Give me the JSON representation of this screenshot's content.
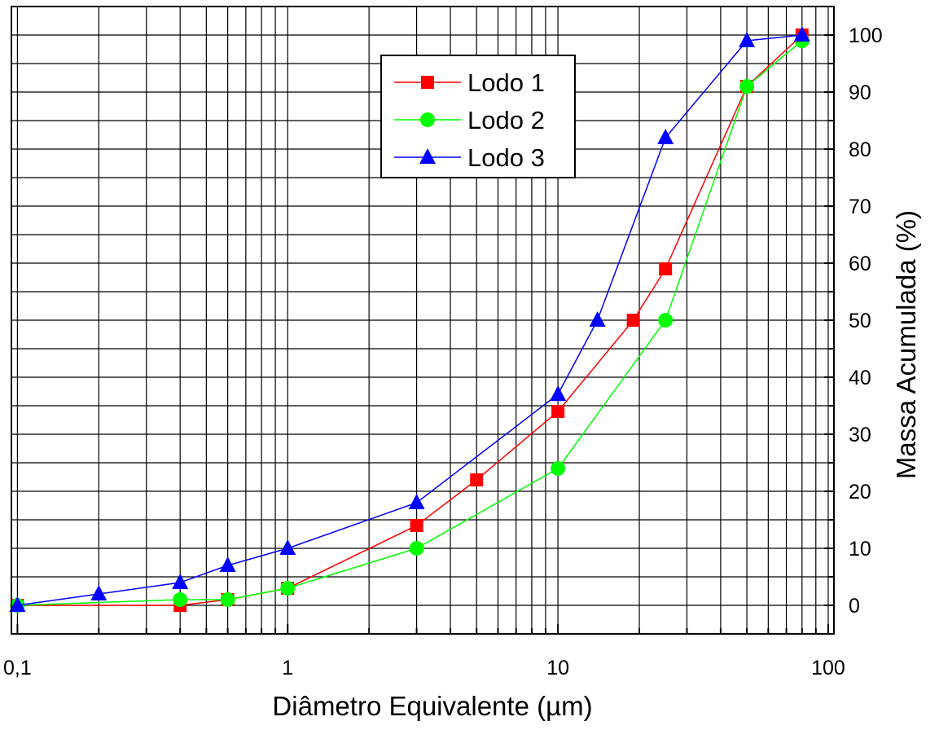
{
  "chart_data": {
    "type": "line",
    "title": "",
    "xlabel": "Diâmetro Equivalente (µm)",
    "ylabel": "Massa Acumulada (%)",
    "xscale": "log",
    "xlim": [
      0.095,
      105
    ],
    "ylim": [
      -5,
      105
    ],
    "grid": "on",
    "legend_position": "top-center",
    "y_axis_position": "right",
    "x_ticks": [
      {
        "value": 0.1,
        "label": "0,1"
      },
      {
        "value": 1,
        "label": "1"
      },
      {
        "value": 10,
        "label": "10"
      },
      {
        "value": 100,
        "label": "100"
      }
    ],
    "y_ticks": [
      {
        "value": 0,
        "label": "0"
      },
      {
        "value": 10,
        "label": "10"
      },
      {
        "value": 20,
        "label": "20"
      },
      {
        "value": 30,
        "label": "30"
      },
      {
        "value": 40,
        "label": "40"
      },
      {
        "value": 50,
        "label": "50"
      },
      {
        "value": 60,
        "label": "60"
      },
      {
        "value": 70,
        "label": "70"
      },
      {
        "value": 80,
        "label": "80"
      },
      {
        "value": 90,
        "label": "90"
      },
      {
        "value": 100,
        "label": "100"
      }
    ],
    "series": [
      {
        "name": "Lodo 1",
        "color": "#ff0000",
        "marker": "square",
        "x": [
          0.1,
          0.4,
          0.6,
          1,
          3,
          5,
          10,
          19,
          25,
          50,
          80
        ],
        "y": [
          0,
          0,
          1,
          3,
          14,
          22,
          34,
          50,
          59,
          91,
          100
        ]
      },
      {
        "name": "Lodo 2",
        "color": "#00ff00",
        "marker": "circle",
        "x": [
          0.1,
          0.4,
          0.6,
          1,
          3,
          10,
          25,
          50,
          80
        ],
        "y": [
          0,
          1,
          1,
          3,
          10,
          24,
          50,
          91,
          99
        ]
      },
      {
        "name": "Lodo 3",
        "color": "#0000ff",
        "marker": "triangle",
        "x": [
          0.1,
          0.2,
          0.4,
          0.6,
          1,
          3,
          10,
          14,
          25,
          50,
          80
        ],
        "y": [
          0,
          2,
          4,
          7,
          10,
          18,
          37,
          50,
          82,
          99,
          100
        ]
      }
    ]
  }
}
